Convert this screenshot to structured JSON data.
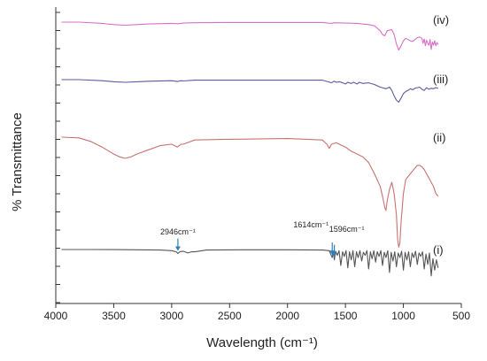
{
  "chart_data": {
    "type": "line",
    "title": "",
    "xlabel": "Wavelength (cm⁻¹)",
    "ylabel": "% Transmittance",
    "xlim": [
      4000,
      500
    ],
    "x_reversed": true,
    "xticks": [
      "4000",
      "3500",
      "3000",
      "2500",
      "2000",
      "1500",
      "1000",
      "500"
    ],
    "grid": false,
    "legend": "none",
    "series": [
      {
        "name": "(iv)",
        "color": "#d96fc8",
        "x": [
          3950,
          3800,
          3600,
          3500,
          3400,
          3300,
          3200,
          3000,
          2950,
          2900,
          2800,
          2500,
          2000,
          1700,
          1650,
          1620,
          1600,
          1500,
          1400,
          1300,
          1250,
          1200,
          1180,
          1160,
          1140,
          1100,
          1080,
          1060,
          1040,
          1020,
          1000,
          980,
          960,
          940,
          920,
          900,
          880,
          860,
          840,
          830,
          820,
          810,
          800,
          790,
          780,
          770,
          760,
          750,
          740,
          730,
          720,
          710,
          700
        ],
        "y": [
          100,
          100,
          98,
          96,
          95,
          96,
          97,
          98,
          97.5,
          98.5,
          99,
          99.5,
          99.5,
          99.5,
          98.5,
          98,
          99,
          98.5,
          98,
          96,
          94,
          86,
          80,
          78,
          86,
          88,
          80,
          65,
          55,
          62,
          70,
          74,
          72,
          70,
          69,
          72,
          75,
          76,
          74,
          66,
          73,
          62,
          71,
          66,
          63,
          72,
          56,
          68,
          63,
          70,
          62,
          67,
          64
        ]
      },
      {
        "name": "(iii)",
        "color": "#5a5a9e",
        "x": [
          3950,
          3800,
          3600,
          3500,
          3400,
          3300,
          3200,
          3000,
          2950,
          2920,
          2900,
          2800,
          2500,
          2000,
          1700,
          1650,
          1620,
          1600,
          1580,
          1550,
          1500,
          1480,
          1450,
          1430,
          1400,
          1380,
          1350,
          1300,
          1250,
          1200,
          1180,
          1150,
          1120,
          1100,
          1080,
          1060,
          1040,
          1020,
          1000,
          980,
          960,
          940,
          920,
          900,
          880,
          860,
          840,
          820,
          800,
          780,
          760,
          740,
          720,
          700
        ],
        "y": [
          100,
          100,
          98,
          96,
          95,
          96,
          97,
          98,
          96.5,
          98,
          97.5,
          99,
          99,
          99,
          99,
          96,
          94,
          97,
          95,
          96,
          92,
          95,
          93,
          95,
          92,
          95,
          93,
          94,
          91,
          86,
          85,
          83,
          86,
          80,
          70,
          62,
          58,
          66,
          74,
          78,
          80,
          83,
          81,
          84,
          85,
          86,
          82,
          80,
          85,
          82,
          84,
          83,
          85,
          84
        ]
      },
      {
        "name": "(ii)",
        "color": "#c97370",
        "x": [
          3950,
          3800,
          3700,
          3600,
          3500,
          3450,
          3400,
          3350,
          3300,
          3200,
          3100,
          3000,
          2950,
          2920,
          2900,
          2800,
          2500,
          2000,
          1700,
          1660,
          1640,
          1620,
          1580,
          1500,
          1450,
          1400,
          1350,
          1300,
          1250,
          1200,
          1180,
          1160,
          1150,
          1140,
          1120,
          1100,
          1080,
          1060,
          1050,
          1040,
          1030,
          1020,
          1000,
          980,
          960,
          940,
          920,
          900,
          880,
          860,
          840,
          820,
          800,
          780,
          760,
          740,
          720,
          700
        ],
        "y": [
          100,
          99.5,
          97,
          93,
          88,
          86,
          85,
          86,
          88,
          91,
          94,
          95,
          93,
          95,
          95,
          98,
          98.5,
          99,
          98,
          95,
          92,
          95,
          96,
          93,
          90,
          88,
          86,
          82,
          74,
          65,
          58,
          50,
          48,
          55,
          63,
          68,
          60,
          45,
          28,
          22,
          25,
          40,
          60,
          70,
          72,
          74,
          76,
          78,
          80,
          80,
          79,
          77,
          74,
          71,
          68,
          65,
          60,
          58
        ]
      },
      {
        "name": "(i)",
        "color": "#555555",
        "x": [
          3950,
          3700,
          3500,
          3300,
          3100,
          3000,
          2960,
          2946,
          2930,
          2900,
          2860,
          2830,
          2800,
          2700,
          2400,
          2000,
          1700,
          1640,
          1614,
          1605,
          1596,
          1585,
          1570,
          1555,
          1540,
          1525,
          1510,
          1495,
          1480,
          1465,
          1450,
          1435,
          1420,
          1405,
          1390,
          1375,
          1360,
          1345,
          1330,
          1315,
          1300,
          1285,
          1270,
          1255,
          1240,
          1225,
          1210,
          1195,
          1180,
          1165,
          1150,
          1135,
          1120,
          1105,
          1090,
          1075,
          1060,
          1045,
          1030,
          1015,
          1000,
          985,
          970,
          955,
          940,
          925,
          910,
          895,
          880,
          865,
          850,
          835,
          820,
          805,
          790,
          775,
          760,
          745,
          730,
          715,
          700
        ],
        "y": [
          100,
          100,
          99.8,
          99.5,
          99,
          98,
          96,
          93,
          96,
          97,
          94,
          96,
          96,
          99,
          99.5,
          99.5,
          99,
          98,
          86,
          96,
          82,
          97,
          90,
          98,
          72,
          96,
          88,
          98,
          68,
          96,
          82,
          98,
          70,
          96,
          86,
          98,
          80,
          95,
          90,
          98,
          66,
          96,
          84,
          98,
          78,
          96,
          88,
          98,
          72,
          95,
          86,
          98,
          60,
          95,
          80,
          96,
          70,
          94,
          86,
          97,
          64,
          95,
          82,
          96,
          70,
          94,
          86,
          97,
          74,
          94,
          88,
          96,
          66,
          92,
          74,
          94,
          54,
          84,
          64,
          82,
          68
        ]
      }
    ],
    "annotations": [
      {
        "text": "2946cm⁻¹",
        "x": 2946,
        "series": 3
      },
      {
        "text": "1614cm⁻¹",
        "x": 1614,
        "series": 3
      },
      {
        "text": "1596cm⁻¹",
        "x": 1596,
        "series": 3
      }
    ]
  }
}
